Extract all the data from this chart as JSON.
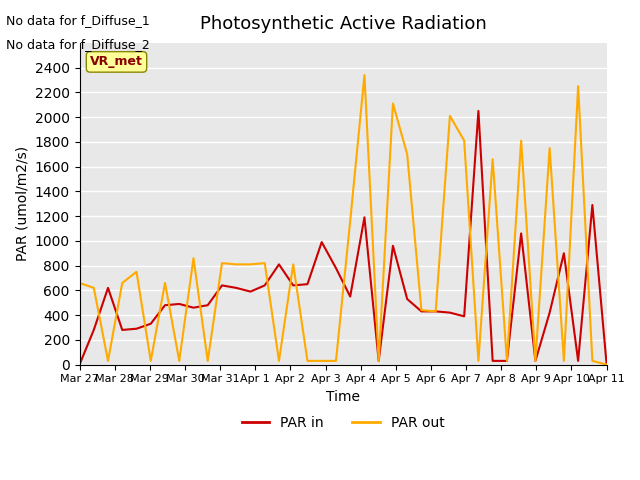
{
  "title": "Photosynthetic Active Radiation",
  "xlabel": "Time",
  "ylabel": "PAR (umol/m2/s)",
  "text_no_data_1": "No data for f_Diffuse_1",
  "text_no_data_2": "No data for f_Diffuse_2",
  "vr_met_label": "VR_met",
  "x_labels": [
    "Mar 27",
    "Mar 28",
    "Mar 29",
    "Mar 30",
    "Mar 31",
    "Apr 1",
    "Apr 2",
    "Apr 3",
    "Apr 4",
    "Apr 5",
    "Apr 6",
    "Apr 7",
    "Apr 8",
    "Apr 9",
    "Apr 10",
    "Apr 11"
  ],
  "par_in": [
    0,
    280,
    620,
    280,
    290,
    330,
    480,
    490,
    460,
    480,
    640,
    620,
    590,
    640,
    810,
    640,
    650,
    990,
    780,
    550,
    1190,
    30,
    960,
    530,
    430,
    430,
    420,
    390,
    2050,
    30,
    30,
    1060,
    30,
    420,
    900,
    30,
    1290,
    0
  ],
  "par_out": [
    660,
    620,
    30,
    660,
    750,
    30,
    660,
    30,
    860,
    30,
    820,
    810,
    810,
    820,
    30,
    810,
    30,
    30,
    30,
    1160,
    2340,
    30,
    2110,
    1700,
    440,
    430,
    2010,
    1810,
    30,
    1660,
    30,
    1810,
    30,
    1750,
    30,
    2250,
    30,
    0
  ],
  "x_values": [
    0,
    1,
    2,
    3,
    4,
    5,
    6,
    7,
    8,
    9,
    10,
    11,
    12,
    13,
    14,
    15,
    16,
    17,
    18,
    19,
    20,
    21,
    22,
    23,
    24,
    25,
    26,
    27,
    28,
    29,
    30,
    31,
    32,
    33,
    34,
    35,
    36,
    37
  ],
  "color_par_in": "#cc0000",
  "color_par_out": "#ffaa00",
  "ylim": [
    0,
    2600
  ],
  "yticks": [
    0,
    200,
    400,
    600,
    800,
    1000,
    1200,
    1400,
    1600,
    1800,
    2000,
    2200,
    2400
  ],
  "bg_color": "#e8e8e8",
  "grid_color": "#ffffff",
  "vr_met_box_color": "#ffff99",
  "vr_met_text_color": "#880000"
}
